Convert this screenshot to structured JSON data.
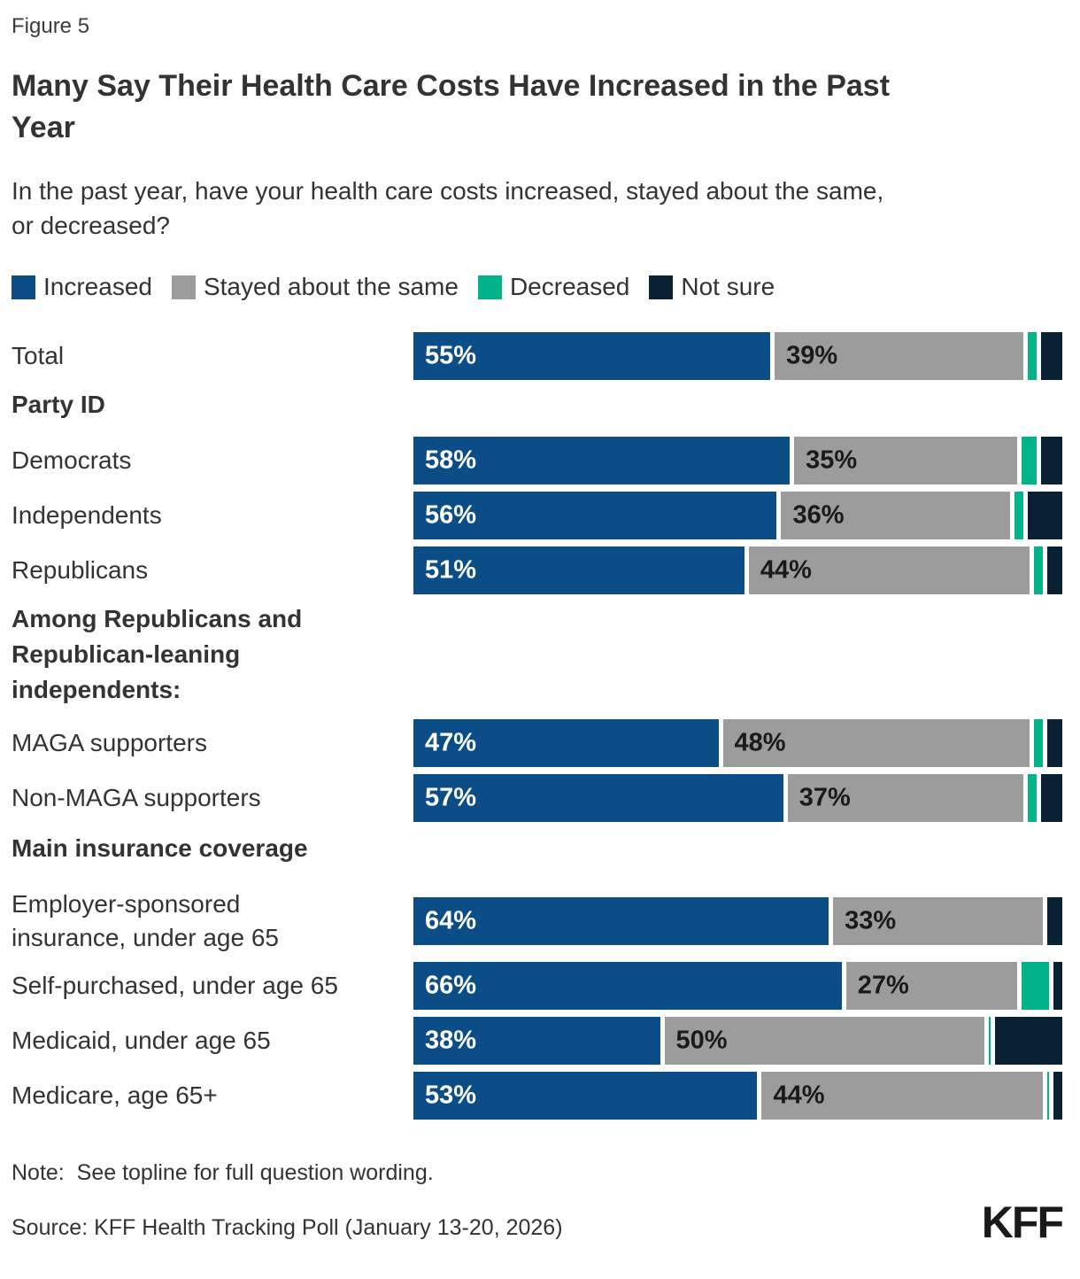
{
  "figure_label": "Figure 5",
  "title": "Many Say Their Health Care Costs Have Increased in the Past\nYear",
  "subtitle": "In the past year, have your health care costs increased, stayed about the same,\nor decreased?",
  "colors": {
    "increased": "#0B4E87",
    "stayed_same": "#9C9C9C",
    "decreased": "#00B388",
    "not_sure": "#0A2033",
    "value_label_on_blue": "#FFFFFF",
    "value_label_on_gray": "#1A1A1A"
  },
  "legend": [
    {
      "key": "increased",
      "label": "Increased"
    },
    {
      "key": "stayed_same",
      "label": "Stayed about the same"
    },
    {
      "key": "decreased",
      "label": "Decreased"
    },
    {
      "key": "not_sure",
      "label": "Not sure"
    }
  ],
  "chart_data": {
    "type": "bar",
    "orientation": "horizontal",
    "stacked": true,
    "unit": "percent",
    "xlim": [
      0,
      100
    ],
    "value_suffix": "%",
    "series_keys": [
      "increased",
      "stayed_same",
      "decreased",
      "not_sure"
    ],
    "series_names": [
      "Increased",
      "Stayed about the same",
      "Decreased",
      "Not sure"
    ],
    "labeled_series": [
      "increased",
      "stayed_same"
    ],
    "items": [
      {
        "type": "row",
        "label": "Total",
        "values": {
          "increased": 55,
          "stayed_same": 39,
          "decreased": 2,
          "not_sure": 4
        }
      },
      {
        "type": "section",
        "label": "Party ID"
      },
      {
        "type": "row",
        "label": "Democrats",
        "values": {
          "increased": 58,
          "stayed_same": 35,
          "decreased": 3,
          "not_sure": 4
        }
      },
      {
        "type": "row",
        "label": "Independents",
        "values": {
          "increased": 56,
          "stayed_same": 36,
          "decreased": 2,
          "not_sure": 6
        }
      },
      {
        "type": "row",
        "label": "Republicans",
        "values": {
          "increased": 51,
          "stayed_same": 44,
          "decreased": 2,
          "not_sure": 3
        }
      },
      {
        "type": "section",
        "label": "Among Republicans and\nRepublican-leaning\nindependents:"
      },
      {
        "type": "row",
        "label": "MAGA supporters",
        "values": {
          "increased": 47,
          "stayed_same": 48,
          "decreased": 2,
          "not_sure": 3
        }
      },
      {
        "type": "row",
        "label": "Non-MAGA supporters",
        "values": {
          "increased": 57,
          "stayed_same": 37,
          "decreased": 2,
          "not_sure": 4
        }
      },
      {
        "type": "section",
        "label": "Main insurance coverage"
      },
      {
        "type": "row",
        "label": "Employer-sponsored\ninsurance, under age 65",
        "values": {
          "increased": 64,
          "stayed_same": 33,
          "decreased": 0,
          "not_sure": 3
        }
      },
      {
        "type": "row",
        "label": "Self-purchased, under age 65",
        "values": {
          "increased": 66,
          "stayed_same": 27,
          "decreased": 5,
          "not_sure": 2
        }
      },
      {
        "type": "row",
        "label": "Medicaid, under age 65",
        "values": {
          "increased": 38,
          "stayed_same": 50,
          "decreased": 1,
          "not_sure": 11
        }
      },
      {
        "type": "row",
        "label": "Medicare, age 65+",
        "values": {
          "increased": 53,
          "stayed_same": 44,
          "decreased": 1,
          "not_sure": 2
        }
      }
    ]
  },
  "note": "Note:  See topline for full question wording.",
  "source": "Source: KFF Health Tracking Poll (January 13-20, 2026)",
  "logo_text": "KFF"
}
